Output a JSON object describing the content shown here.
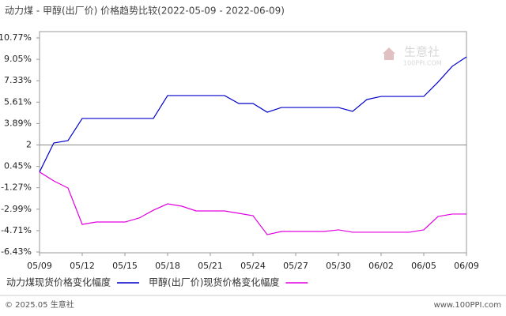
{
  "chart_data": {
    "type": "line",
    "title": "动力煤 - 甲醇(出厂价) 价格趋势比较(2022-05-09 - 2022-06-09)",
    "categories": [
      "05/09",
      null,
      null,
      "05/12",
      null,
      null,
      "05/15",
      null,
      null,
      "05/18",
      null,
      null,
      "05/21",
      null,
      null,
      "05/24",
      null,
      null,
      "05/27",
      null,
      null,
      "05/30",
      null,
      null,
      "06/02",
      null,
      null,
      "06/05",
      null,
      null,
      "06/09"
    ],
    "series": [
      {
        "name": "动力煤现货价格变化幅度",
        "color": "#0000cc",
        "values": [
          0,
          2.33,
          2.52,
          4.3,
          4.3,
          4.3,
          4.3,
          4.3,
          4.3,
          6.14,
          6.14,
          6.14,
          6.14,
          6.14,
          5.5,
          5.5,
          4.8,
          5.18,
          5.18,
          5.18,
          5.18,
          5.18,
          4.87,
          5.82,
          6.07,
          6.07,
          6.07,
          6.07,
          7.22,
          8.49,
          9.25
        ]
      },
      {
        "name": "甲醇(出厂价)现货价格变化幅度",
        "color": "#e000e0",
        "values": [
          0,
          -0.72,
          -1.29,
          -4.21,
          -4.02,
          -4.02,
          -4.02,
          -3.7,
          -3.07,
          -2.56,
          -2.75,
          -3.13,
          -3.13,
          -3.13,
          -3.32,
          -3.51,
          -5.03,
          -4.78,
          -4.78,
          -4.78,
          -4.78,
          -4.65,
          -4.84,
          -4.84,
          -4.84,
          -4.84,
          -4.84,
          -4.65,
          -3.58,
          -3.38,
          -3.38
        ]
      }
    ],
    "ylim": [
      -6.43,
      10.77
    ],
    "yticks": [
      {
        "value": 10.77,
        "label": "10.77%"
      },
      {
        "value": 9.05,
        "label": "9.05%"
      },
      {
        "value": 7.33,
        "label": "7.33%"
      },
      {
        "value": 5.61,
        "label": "5.61%"
      },
      {
        "value": 3.89,
        "label": "3.89%"
      },
      {
        "value": 2.17,
        "label": "2"
      },
      {
        "value": 0.45,
        "label": "0.45%"
      },
      {
        "value": -1.27,
        "label": "-1.27%"
      },
      {
        "value": -2.99,
        "label": "-2.99%"
      },
      {
        "value": -4.71,
        "label": "-4.71%"
      },
      {
        "value": -6.43,
        "label": "-6.43%"
      }
    ],
    "grid": false,
    "watermark": {
      "brand": "生意社",
      "site": "100PPI.COM"
    },
    "footer": {
      "left": "© 2025.05 生意社",
      "right": "www.100PPI.com"
    }
  }
}
